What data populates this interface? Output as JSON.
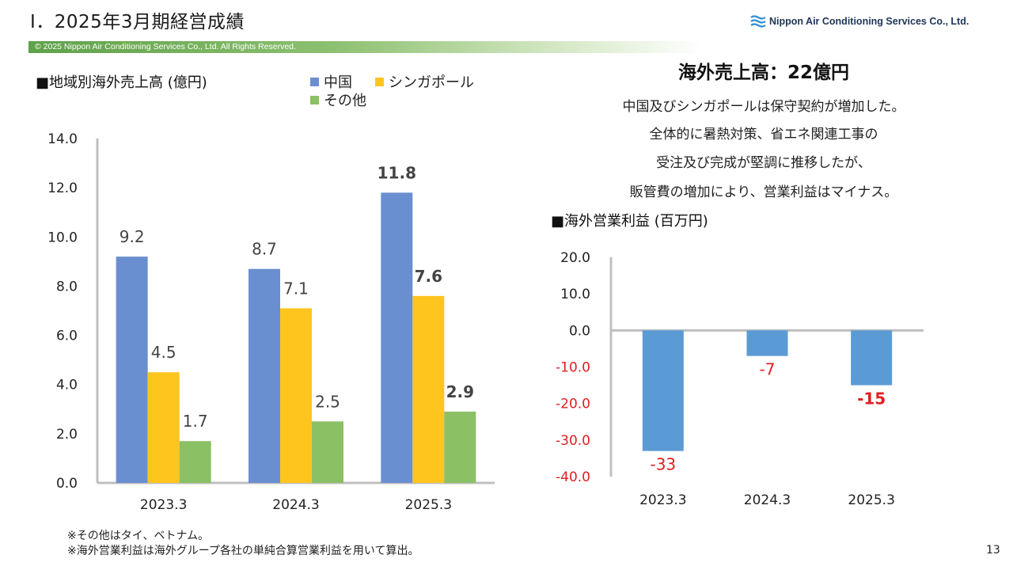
{
  "header": {
    "title": "Ⅰ．2025年3月期経営成績",
    "company": "Nippon Air Conditioning Services Co., Ltd.",
    "logo_icon": "waves-logo-icon",
    "copyright": "© 2025 Nippon Air Conditioning Services Co., Ltd. All Rights Reserved."
  },
  "left_chart_heading": "■地域別海外売上高 (億円)",
  "right_chart_heading": "■海外営業利益 (百万円)",
  "summary": {
    "title": "海外売上高：22億円",
    "lines": [
      "中国及びシンガポールは保守契約が増加した。",
      "全体的に暑熱対策、省エネ関連工事の",
      "受注及び完成が堅調に推移したが、",
      "販管費の増加により、営業利益はマイナス。"
    ]
  },
  "notes": [
    "※その他はタイ、ベトナム。",
    "※海外営業利益は海外グループ各社の単純合算営業利益を用いて算出。"
  ],
  "page_number": "13",
  "colors": {
    "china": "#6a8fd0",
    "singapore": "#ffc51f",
    "other": "#8bc064",
    "profit_bar": "#5b9bd5",
    "negative_label": "#e02020",
    "axis": "#bfbfbf",
    "band": "#6aa84f"
  },
  "chart_data": [
    {
      "type": "bar",
      "categories": [
        "2023.3",
        "2024.3",
        "2025.3"
      ],
      "series": [
        {
          "name": "中国",
          "values": [
            9.2,
            8.7,
            11.8
          ],
          "labels": [
            "9.2",
            "8.7",
            "11.8"
          ]
        },
        {
          "name": "シンガポール",
          "values": [
            4.5,
            7.1,
            7.6
          ],
          "labels": [
            "4.5",
            "7.1",
            "7.6"
          ]
        },
        {
          "name": "その他",
          "values": [
            1.7,
            2.5,
            2.9
          ],
          "labels": [
            "1.7",
            "2.5",
            "2.9"
          ]
        }
      ],
      "ylim": [
        0,
        14
      ],
      "yticks": [
        "0.0",
        "2.0",
        "4.0",
        "6.0",
        "8.0",
        "10.0",
        "12.0",
        "14.0"
      ],
      "grid": false,
      "legend": "top"
    },
    {
      "type": "bar",
      "categories": [
        "2023.3",
        "2024.3",
        "2025.3"
      ],
      "series": [
        {
          "values": [
            -33,
            -7,
            -15
          ],
          "labels": [
            "-33",
            "-7",
            "-15"
          ]
        }
      ],
      "ylim": [
        -40,
        20
      ],
      "yticks": [
        "20.0",
        "10.0",
        "0.0",
        "-10.0",
        "-20.0",
        "-30.0",
        "-40.0"
      ],
      "grid": false
    }
  ]
}
